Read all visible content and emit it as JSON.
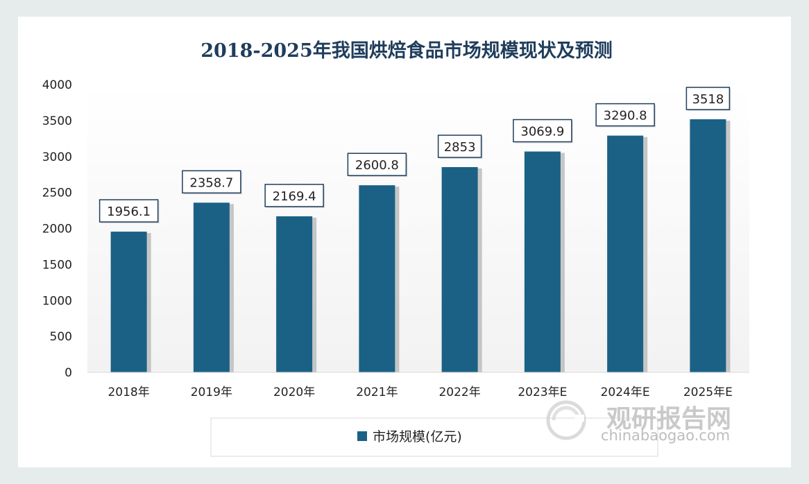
{
  "chart_data": {
    "type": "bar",
    "title": "2018-2025年我国烘焙食品市场规模现状及预测",
    "categories": [
      "2018年",
      "2019年",
      "2020年",
      "2021年",
      "2022年",
      "2023年E",
      "2024年E",
      "2025年E"
    ],
    "series": [
      {
        "name": "市场规模(亿元)",
        "values": [
          1956.1,
          2358.7,
          2169.4,
          2600.8,
          2853,
          3069.9,
          3290.8,
          3518
        ],
        "labels": [
          "1956.1",
          "2358.7",
          "2169.4",
          "2600.8",
          "2853",
          "3069.9",
          "3290.8",
          "3518"
        ]
      }
    ],
    "ylim": [
      0,
      4000
    ],
    "yticks": [
      "0",
      "500",
      "1000",
      "1500",
      "2000",
      "2500",
      "3000",
      "3500",
      "4000"
    ],
    "bar_color": "#1b6185",
    "legend_position": "bottom",
    "grid": false
  },
  "watermark": {
    "brand": "观研报告网",
    "url": "chinabaogao.com"
  }
}
